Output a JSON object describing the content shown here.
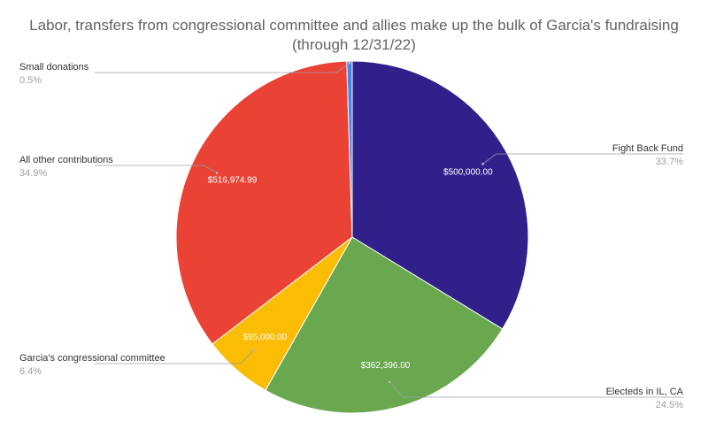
{
  "chart_data": {
    "type": "pie",
    "title": "Labor, transfers from congressional committee and allies make up the bulk of Garcia's fundraising",
    "subtitle": "(through 12/31/22)",
    "start_at": "12 o'clock",
    "direction": "clockwise",
    "slices": [
      {
        "label": "Fight Back Fund",
        "value": 500000.0,
        "value_label": "$500,000.00",
        "percent": 33.7,
        "percent_label": "33.7%",
        "color": "#31208a",
        "callout_side": "right"
      },
      {
        "label": "Electeds in IL, CA",
        "value": 362396.0,
        "value_label": "$362,396.00",
        "percent": 24.5,
        "percent_label": "24.5%",
        "color": "#6aa84f",
        "callout_side": "right"
      },
      {
        "label": "Garcia's congressional committee",
        "value": 95000.0,
        "value_label": "$95,000.00",
        "percent": 6.4,
        "percent_label": "6.4%",
        "color": "#fbbc04",
        "callout_side": "left"
      },
      {
        "label": "All other contributions",
        "value": 516974.99,
        "value_label": "$516,974.99",
        "percent": 34.9,
        "percent_label": "34.9%",
        "color": "#ea4335",
        "callout_side": "left"
      },
      {
        "label": "Small donations",
        "value": 7400,
        "value_label": "",
        "percent": 0.5,
        "percent_label": "0.5%",
        "color": "#4a86e8",
        "callout_side": "left"
      }
    ]
  }
}
